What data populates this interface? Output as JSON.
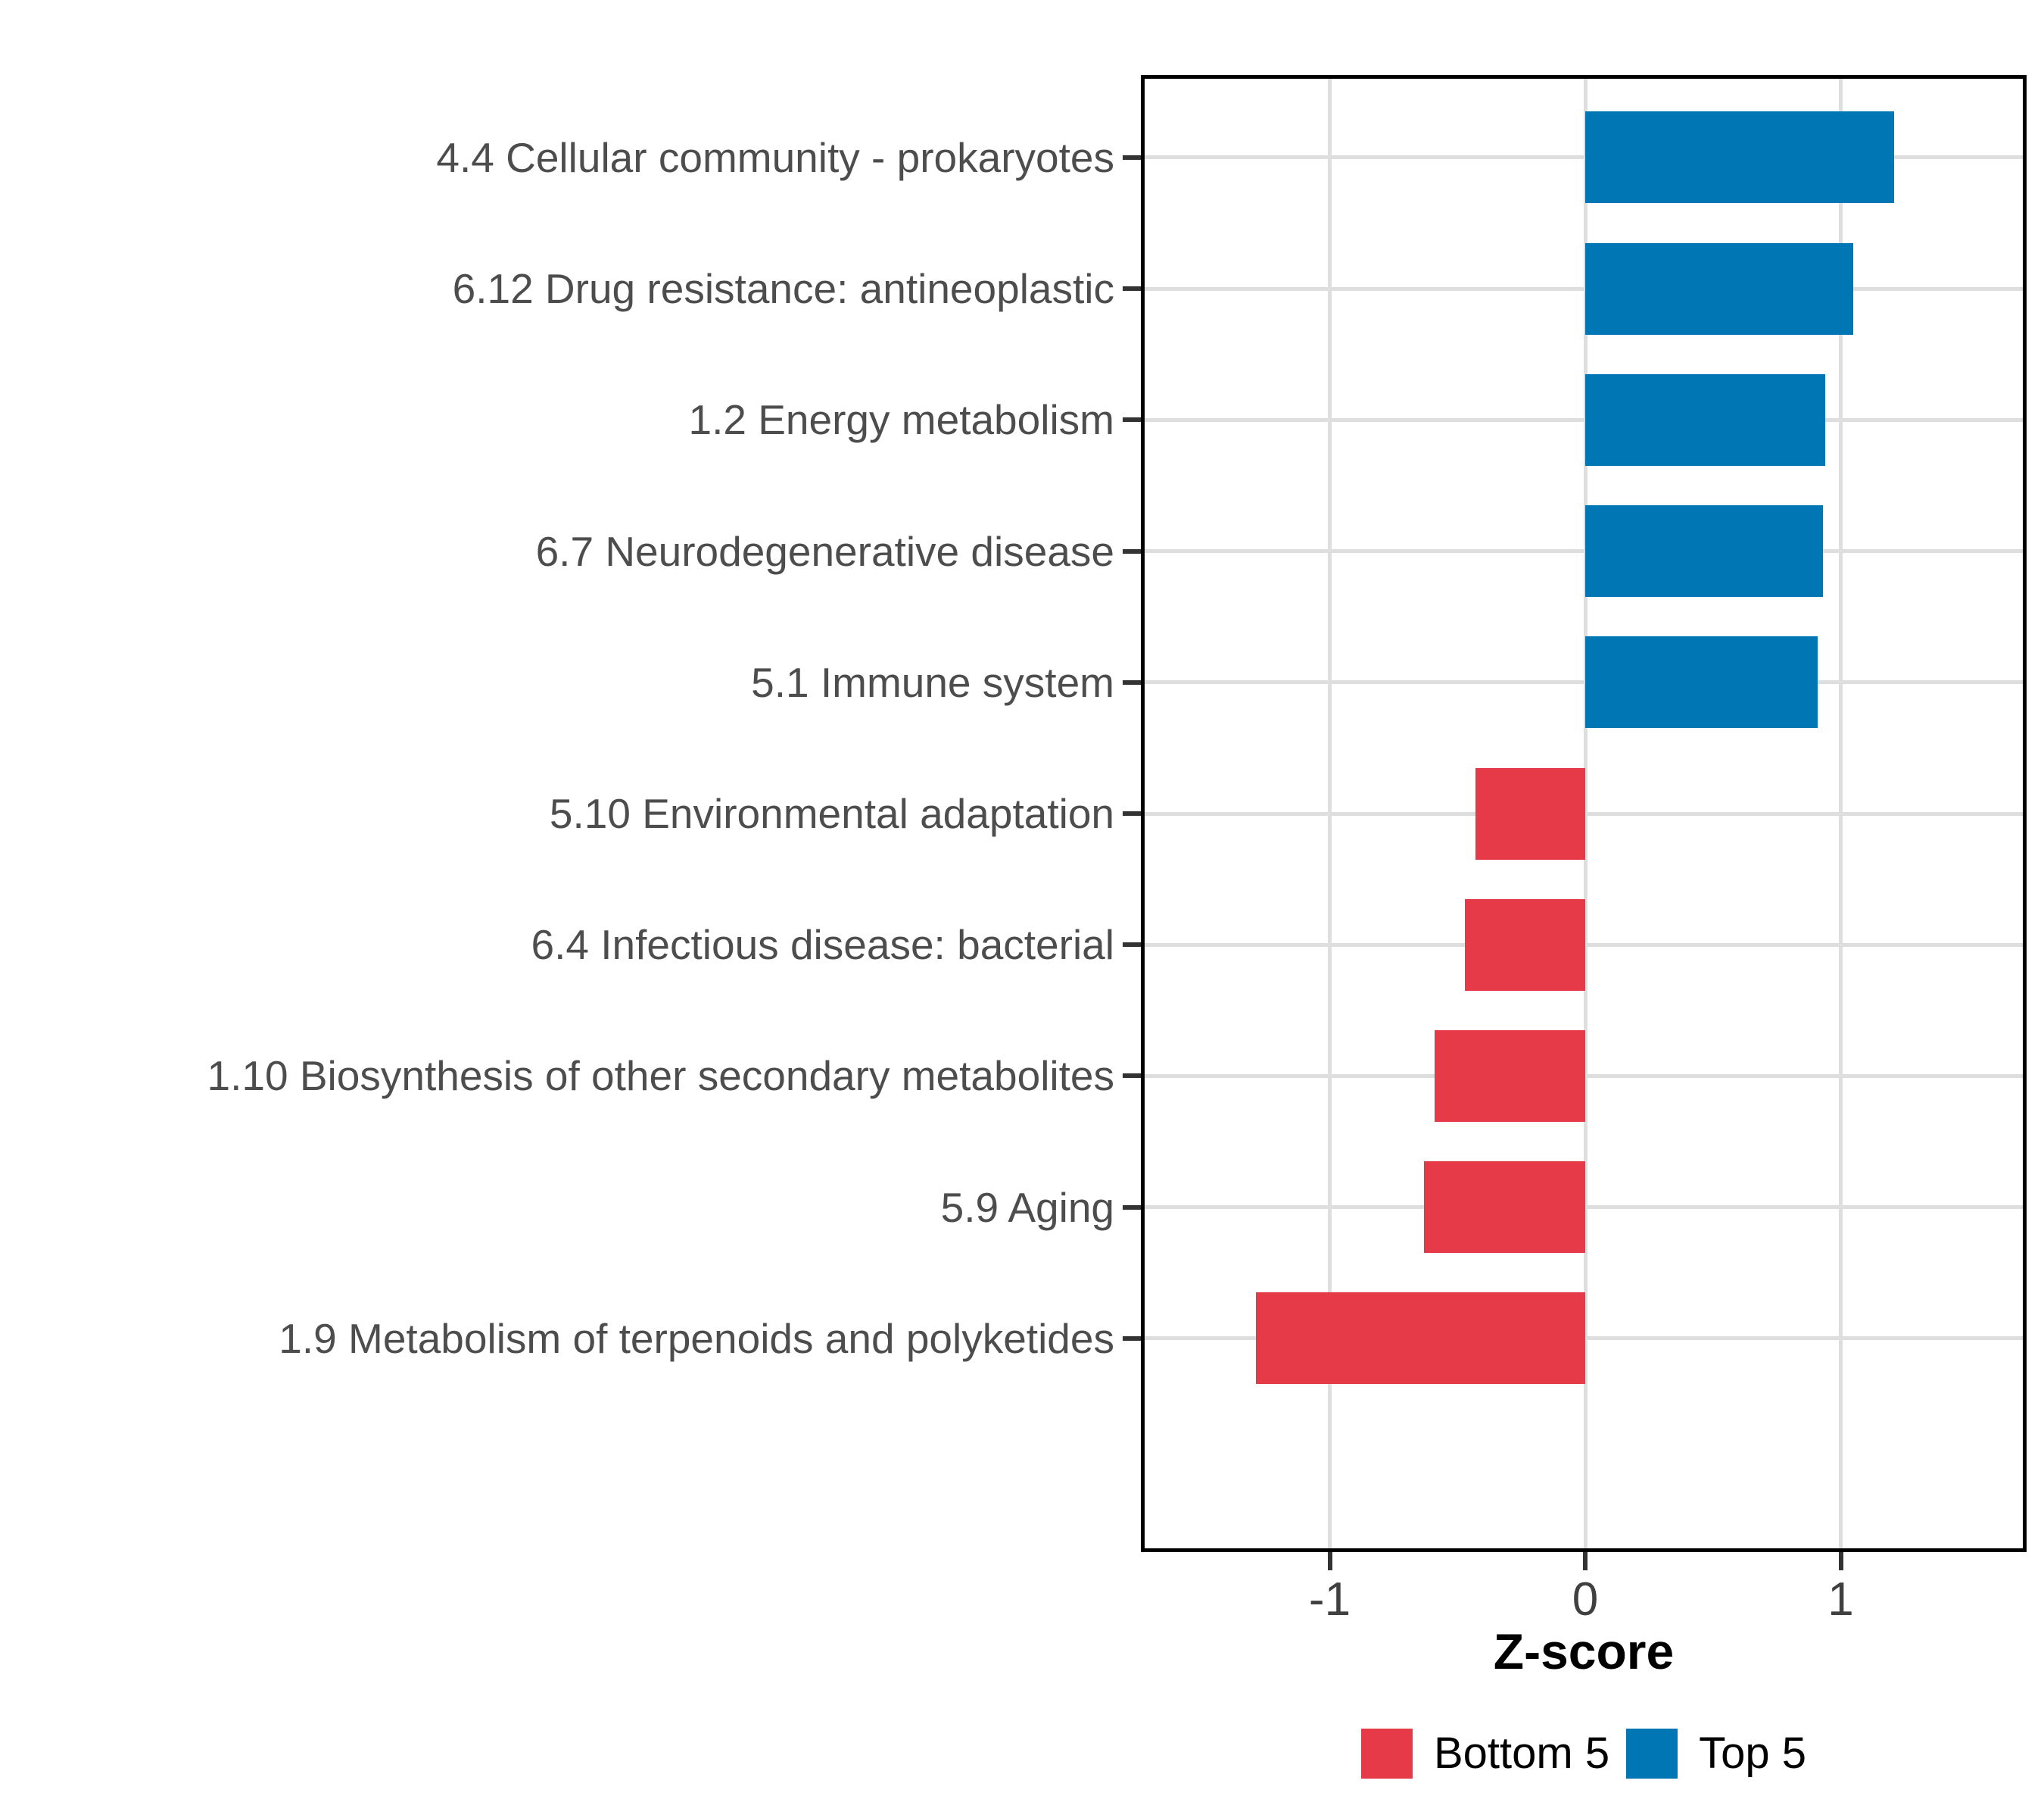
{
  "chart_data": {
    "type": "bar",
    "orientation": "horizontal",
    "title": "",
    "xlabel": "Z-score",
    "ylabel": "",
    "xlim": [
      -1.77,
      1.71
    ],
    "grid": "major",
    "x_ticks": [
      {
        "value": -1,
        "label": "-1"
      },
      {
        "value": 0,
        "label": "0"
      },
      {
        "value": 1,
        "label": "1"
      }
    ],
    "bars": [
      {
        "label": "4.4 Cellular community - prokaryotes",
        "value": 1.21,
        "group": "Top 5"
      },
      {
        "label": "6.12 Drug resistance: antineoplastic",
        "value": 1.05,
        "group": "Top 5"
      },
      {
        "label": "1.2 Energy metabolism",
        "value": 0.94,
        "group": "Top 5"
      },
      {
        "label": "6.7 Neurodegenerative disease",
        "value": 0.93,
        "group": "Top 5"
      },
      {
        "label": "5.1 Immune system",
        "value": 0.91,
        "group": "Top 5"
      },
      {
        "label": "5.10 Environmental adaptation",
        "value": -0.43,
        "group": "Bottom 5"
      },
      {
        "label": "6.4 Infectious disease: bacterial",
        "value": -0.47,
        "group": "Bottom 5"
      },
      {
        "label": "1.10 Biosynthesis of other secondary metabolites",
        "value": -0.59,
        "group": "Bottom 5"
      },
      {
        "label": "5.9 Aging",
        "value": -0.63,
        "group": "Bottom 5"
      },
      {
        "label": "1.9 Metabolism of terpenoids and polyketides",
        "value": -1.29,
        "group": "Bottom 5"
      }
    ],
    "legend": [
      {
        "label": "Bottom 5",
        "color": "#E73A49"
      },
      {
        "label": "Top 5",
        "color": "#0077B4"
      }
    ],
    "colors": {
      "top5_blue": "#0077B4",
      "bottom5_red": "#E73A49",
      "gridline": "#DEDEDE",
      "panel_border": "#000000",
      "axis_text_y": "#4D4D4D",
      "axis_text_x": "#404040",
      "tick_mark": "#333333",
      "axis_title": "#000000"
    }
  }
}
